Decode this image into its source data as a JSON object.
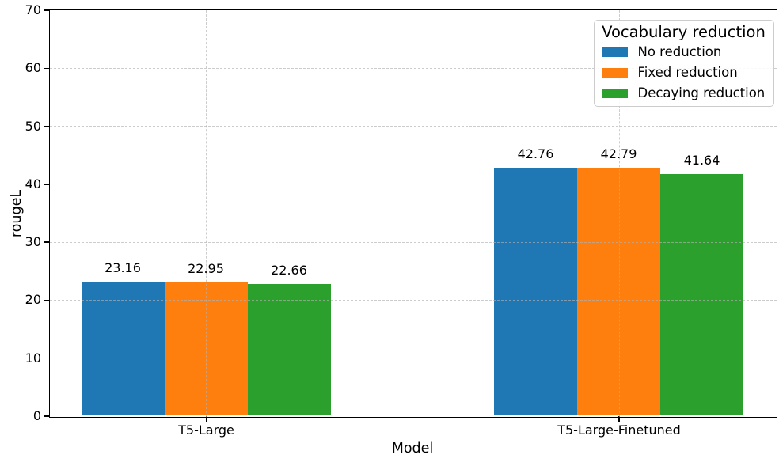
{
  "chart_data": {
    "type": "bar",
    "title": "",
    "xlabel": "Model",
    "ylabel": "rougeL",
    "categories": [
      "T5-Large",
      "T5-Large-Finetuned"
    ],
    "series": [
      {
        "name": "No reduction",
        "color": "#1f77b4",
        "values": [
          23.16,
          42.76
        ]
      },
      {
        "name": "Fixed reduction",
        "color": "#ff7f0e",
        "values": [
          22.95,
          42.79
        ]
      },
      {
        "name": "Decaying reduction",
        "color": "#2ca02c",
        "values": [
          22.66,
          41.64
        ]
      }
    ],
    "bar_value_labels": [
      [
        "23.16",
        "42.76"
      ],
      [
        "22.95",
        "42.79"
      ],
      [
        "22.66",
        "41.64"
      ]
    ],
    "ylim": [
      0,
      70
    ],
    "yticks": [
      0,
      10,
      20,
      30,
      40,
      50,
      60,
      70
    ],
    "grid": true,
    "grid_linestyle": "dashed",
    "legend": {
      "title": "Vocabulary reduction",
      "position": "upper right"
    },
    "colors": {
      "axis": "#000000",
      "grid": "#b0b0b0",
      "background": "#ffffff"
    }
  }
}
